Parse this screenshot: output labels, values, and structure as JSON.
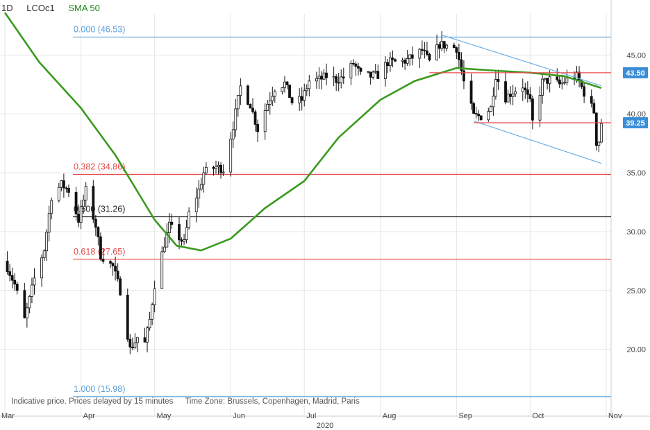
{
  "header": {
    "timeframe": "1D",
    "symbol": "LCOc1",
    "indicator": "SMA 50"
  },
  "footer": {
    "notice": "Indicative price. Prices delayed by 15 minutes",
    "timezone": "Time Zone: Brussels, Copenhagen, Madrid, Paris"
  },
  "colors": {
    "sma": "#3a9a1e",
    "candle": "#111111",
    "grid": "#e6e6e6",
    "fib_blue": "#5aa0dc",
    "fib_red": "#e84a4a",
    "fib_black": "#222222",
    "channel": "#6aaee6",
    "badge": "#3b8ed6"
  },
  "chart_data": {
    "type": "candlestick",
    "y_range": [
      15.5,
      48.5
    ],
    "y_ticks": [
      "20.00",
      "25.00",
      "30.00",
      "35.00",
      "40.00",
      "45.00"
    ],
    "x_ticks": [
      "Mar",
      "Apr",
      "May",
      "Jun",
      "Jul",
      "Aug",
      "Sep",
      "Oct",
      "Nov"
    ],
    "year_label": "2020",
    "fib_levels": [
      {
        "label": "0.000 (46.53)",
        "value": 46.53,
        "color": "#5aa0dc"
      },
      {
        "label": "0.382 (34.86)",
        "value": 34.86,
        "color": "#e84a4a"
      },
      {
        "label": "0.500 (31.26)",
        "value": 31.26,
        "color": "#222222"
      },
      {
        "label": "0.618 (27.65)",
        "value": 27.65,
        "color": "#e84a4a"
      },
      {
        "label": "1.000 (15.98)",
        "value": 15.98,
        "color": "#5aa0dc"
      }
    ],
    "resistance": 43.5,
    "resistance_label": "43.50",
    "support": 39.25,
    "last_price_label": "39.25",
    "channel": {
      "upper": [
        {
          "date": "2020-08-26",
          "value": 46.7
        },
        {
          "date": "2020-10-30",
          "value": 42.4
        }
      ],
      "lower": [
        {
          "date": "2020-09-08",
          "value": 39.4
        },
        {
          "date": "2020-10-30",
          "value": 35.8
        }
      ]
    },
    "sma50": [
      {
        "date": "2020-03-01",
        "value": 48.6
      },
      {
        "date": "2020-03-15",
        "value": 44.4
      },
      {
        "date": "2020-04-01",
        "value": 40.5
      },
      {
        "date": "2020-04-15",
        "value": 36.5
      },
      {
        "date": "2020-05-01",
        "value": 31.0
      },
      {
        "date": "2020-05-10",
        "value": 28.8
      },
      {
        "date": "2020-05-20",
        "value": 28.4
      },
      {
        "date": "2020-06-01",
        "value": 29.4
      },
      {
        "date": "2020-06-15",
        "value": 32.0
      },
      {
        "date": "2020-07-01",
        "value": 34.3
      },
      {
        "date": "2020-07-15",
        "value": 38.0
      },
      {
        "date": "2020-08-01",
        "value": 41.2
      },
      {
        "date": "2020-08-15",
        "value": 42.8
      },
      {
        "date": "2020-09-01",
        "value": 43.9
      },
      {
        "date": "2020-09-15",
        "value": 43.7
      },
      {
        "date": "2020-10-01",
        "value": 43.5
      },
      {
        "date": "2020-10-15",
        "value": 43.2
      },
      {
        "date": "2020-10-30",
        "value": 42.2
      }
    ],
    "closes": [
      {
        "date": "2020-03-01",
        "value": 27.5
      },
      {
        "date": "2020-03-05",
        "value": 25.5
      },
      {
        "date": "2020-03-09",
        "value": 22.5
      },
      {
        "date": "2020-03-13",
        "value": 26.0
      },
      {
        "date": "2020-03-17",
        "value": 28.5
      },
      {
        "date": "2020-03-20",
        "value": 33.0
      },
      {
        "date": "2020-03-24",
        "value": 34.0
      },
      {
        "date": "2020-03-27",
        "value": 33.5
      },
      {
        "date": "2020-03-31",
        "value": 31.0
      },
      {
        "date": "2020-04-03",
        "value": 33.5
      },
      {
        "date": "2020-04-07",
        "value": 30.5
      },
      {
        "date": "2020-04-09",
        "value": 28.0
      },
      {
        "date": "2020-04-14",
        "value": 27.0
      },
      {
        "date": "2020-04-17",
        "value": 25.0
      },
      {
        "date": "2020-04-21",
        "value": 20.0
      },
      {
        "date": "2020-04-24",
        "value": 21.0
      },
      {
        "date": "2020-04-27",
        "value": 20.5
      },
      {
        "date": "2020-04-29",
        "value": 22.5
      },
      {
        "date": "2020-05-01",
        "value": 25.5
      },
      {
        "date": "2020-05-05",
        "value": 29.0
      },
      {
        "date": "2020-05-07",
        "value": 30.5
      },
      {
        "date": "2020-05-11",
        "value": 29.5
      },
      {
        "date": "2020-05-13",
        "value": 29.0
      },
      {
        "date": "2020-05-15",
        "value": 31.5
      },
      {
        "date": "2020-05-19",
        "value": 33.5
      },
      {
        "date": "2020-05-21",
        "value": 35.0
      },
      {
        "date": "2020-05-26",
        "value": 35.5
      },
      {
        "date": "2020-05-29",
        "value": 35.3
      },
      {
        "date": "2020-06-02",
        "value": 39.0
      },
      {
        "date": "2020-06-05",
        "value": 42.3
      },
      {
        "date": "2020-06-09",
        "value": 40.8
      },
      {
        "date": "2020-06-12",
        "value": 38.7
      },
      {
        "date": "2020-06-16",
        "value": 40.9
      },
      {
        "date": "2020-06-19",
        "value": 42.2
      },
      {
        "date": "2020-06-23",
        "value": 42.6
      },
      {
        "date": "2020-06-26",
        "value": 41.0
      },
      {
        "date": "2020-06-30",
        "value": 41.2
      },
      {
        "date": "2020-07-03",
        "value": 42.8
      },
      {
        "date": "2020-07-07",
        "value": 42.9
      },
      {
        "date": "2020-07-10",
        "value": 43.2
      },
      {
        "date": "2020-07-14",
        "value": 42.9
      },
      {
        "date": "2020-07-17",
        "value": 43.1
      },
      {
        "date": "2020-07-21",
        "value": 44.3
      },
      {
        "date": "2020-07-24",
        "value": 43.3
      },
      {
        "date": "2020-07-28",
        "value": 43.2
      },
      {
        "date": "2020-07-31",
        "value": 43.3
      },
      {
        "date": "2020-08-04",
        "value": 44.4
      },
      {
        "date": "2020-08-07",
        "value": 44.4
      },
      {
        "date": "2020-08-11",
        "value": 44.5
      },
      {
        "date": "2020-08-14",
        "value": 44.8
      },
      {
        "date": "2020-08-18",
        "value": 45.4
      },
      {
        "date": "2020-08-21",
        "value": 44.4
      },
      {
        "date": "2020-08-25",
        "value": 45.9
      },
      {
        "date": "2020-08-28",
        "value": 45.8
      },
      {
        "date": "2020-09-01",
        "value": 45.6
      },
      {
        "date": "2020-09-04",
        "value": 42.7
      },
      {
        "date": "2020-09-08",
        "value": 39.8
      },
      {
        "date": "2020-09-11",
        "value": 39.8
      },
      {
        "date": "2020-09-15",
        "value": 40.5
      },
      {
        "date": "2020-09-17",
        "value": 43.3
      },
      {
        "date": "2020-09-21",
        "value": 41.4
      },
      {
        "date": "2020-09-24",
        "value": 41.9
      },
      {
        "date": "2020-09-28",
        "value": 42.4
      },
      {
        "date": "2020-10-01",
        "value": 40.9
      },
      {
        "date": "2020-10-02",
        "value": 39.3
      },
      {
        "date": "2020-10-06",
        "value": 42.7
      },
      {
        "date": "2020-10-09",
        "value": 42.9
      },
      {
        "date": "2020-10-13",
        "value": 42.5
      },
      {
        "date": "2020-10-16",
        "value": 42.9
      },
      {
        "date": "2020-10-20",
        "value": 43.2
      },
      {
        "date": "2020-10-23",
        "value": 41.8
      },
      {
        "date": "2020-10-27",
        "value": 40.2
      },
      {
        "date": "2020-10-28",
        "value": 37.6
      },
      {
        "date": "2020-10-29",
        "value": 37.7
      },
      {
        "date": "2020-10-30",
        "value": 39.25
      }
    ]
  }
}
